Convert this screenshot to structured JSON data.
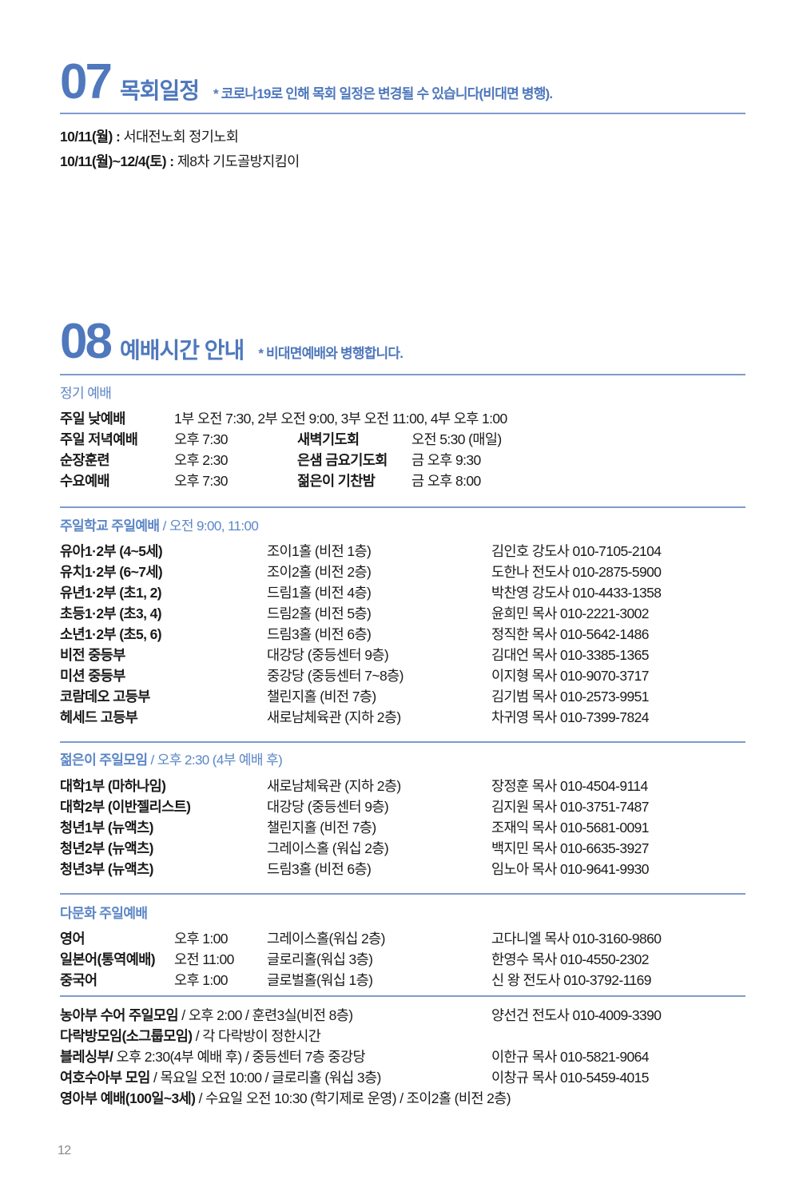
{
  "section07": {
    "number": "07",
    "title": "목회일정",
    "note": "* 코로나19로 인해 목회 일정은 변경될 수 있습니다(비대면 병행).",
    "items": [
      {
        "date": "10/11(월) :",
        "text": " 서대전노회 정기노회"
      },
      {
        "date": "10/11(월)~12/4(토) :",
        "text": " 제8차 기도골방지킴이"
      }
    ]
  },
  "section08": {
    "number": "08",
    "title": "예배시간 안내",
    "note": "* 비대면예배와 병행합니다.",
    "regular": {
      "heading": "정기 예배",
      "first_row": {
        "name": "주일 낮예배",
        "time": "1부 오전 7:30, 2부 오전 9:00, 3부 오전 11:00, 4부 오후 1:00"
      },
      "rows": [
        {
          "name": "주일 저녁예배",
          "time": "오후 7:30",
          "name2": "새벽기도회",
          "time2": "오전 5:30 (매일)"
        },
        {
          "name": "순장훈련",
          "time": "오후 2:30",
          "name2": "은샘 금요기도회",
          "time2": "금 오후 9:30"
        },
        {
          "name": "수요예배",
          "time": "오후 7:30",
          "name2": "젊은이 기찬밤",
          "time2": "금 오후 8:00"
        }
      ]
    },
    "sunday_school": {
      "heading": "주일학교 주일예배",
      "heading_time": " / 오전 9:00, 11:00",
      "rows": [
        {
          "dept": "유아1·2부 (4~5세)",
          "place": "조이1홀 (비전 1층)",
          "contact": "김인호 강도사 010-7105-2104"
        },
        {
          "dept": "유치1·2부 (6~7세)",
          "place": "조이2홀 (비전 2층)",
          "contact": "도한나 전도사 010-2875-5900"
        },
        {
          "dept": "유년1·2부 (초1, 2)",
          "place": "드림1홀 (비전 4층)",
          "contact": "박찬영 강도사 010-4433-1358"
        },
        {
          "dept": "초등1·2부 (초3, 4)",
          "place": "드림2홀 (비전 5층)",
          "contact": "윤희민 목사 010-2221-3002"
        },
        {
          "dept": "소년1·2부 (초5, 6)",
          "place": "드림3홀 (비전 6층)",
          "contact": "정직한 목사 010-5642-1486"
        },
        {
          "dept": "비전 중등부",
          "place": "대강당 (중등센터 9층)",
          "contact": "김대언 목사 010-3385-1365"
        },
        {
          "dept": "미션 중등부",
          "place": "중강당 (중등센터 7~8층)",
          "contact": "이지형 목사 010-9070-3717"
        },
        {
          "dept": "코람데오 고등부",
          "place": "챌린지홀 (비전 7층)",
          "contact": "김기범 목사 010-2573-9951"
        },
        {
          "dept": "헤세드 고등부",
          "place": "새로남체육관 (지하 2층)",
          "contact": "차귀영 목사 010-7399-7824"
        }
      ]
    },
    "youth": {
      "heading": "젊은이 주일모임",
      "heading_time": " / 오후 2:30 (4부 예배 후)",
      "rows": [
        {
          "dept": "대학1부 (마하나임)",
          "place": "새로남체육관 (지하 2층)",
          "contact": "장정훈 목사 010-4504-9114"
        },
        {
          "dept": "대학2부 (이반젤리스트)",
          "place": "대강당 (중등센터 9층)",
          "contact": "김지원 목사 010-3751-7487"
        },
        {
          "dept": "청년1부 (뉴액츠)",
          "place": "챌린지홀 (비전 7층)",
          "contact": "조재익 목사 010-5681-0091"
        },
        {
          "dept": "청년2부 (뉴액츠)",
          "place": "그레이스홀 (워십 2층)",
          "contact": "백지민 목사 010-6635-3927"
        },
        {
          "dept": "청년3부 (뉴액츠)",
          "place": "드림3홀 (비전 6층)",
          "contact": "임노아 목사 010-9641-9930"
        }
      ]
    },
    "multicultural": {
      "heading": "다문화 주일예배",
      "rows": [
        {
          "lang": "영어",
          "time": "오후 1:00",
          "place": "그레이스홀(워십 2층)",
          "contact": "고다니엘 목사 010-3160-9860"
        },
        {
          "lang": "일본어(통역예배)",
          "time": "오전 11:00",
          "place": "글로리홀(워십 3층)",
          "contact": "한영수  목사  010-4550-2302"
        },
        {
          "lang": "중국어",
          "time": "오후 1:00",
          "place": "글로벌홀(워십 1층)",
          "contact": "신   왕 전도사  010-3792-1169"
        }
      ]
    },
    "others": [
      {
        "name": "농아부 수어 주일모임",
        "detail": " / 오후 2:00 / 훈련3실(비전 8층)",
        "contact": "양선건 전도사 010-4009-3390"
      },
      {
        "name": "다락방모임(소그룹모임)",
        "detail": " / 각 다락방이 정한시간",
        "contact": ""
      },
      {
        "name": "블레싱부/",
        "detail": " 오후 2:30(4부 예배 후) / 중등센터 7층 중강당",
        "contact": "이한규   목사   010-5821-9064"
      },
      {
        "name": "여호수아부 모임",
        "detail": " / 목요일 오전 10:00 / 글로리홀 (워십 3층)",
        "contact": "이창규   목사   010-5459-4015"
      },
      {
        "name": "영아부 예배(100일~3세)",
        "detail": " / 수요일 오전 10:30 (학기제로 운영) / 조이2홀 (비전 2층)",
        "contact": ""
      }
    ]
  },
  "page_number": "12",
  "colors": {
    "accent": "#4f78bd",
    "rule": "#7f9bcc",
    "subheading": "#5b86c6"
  }
}
